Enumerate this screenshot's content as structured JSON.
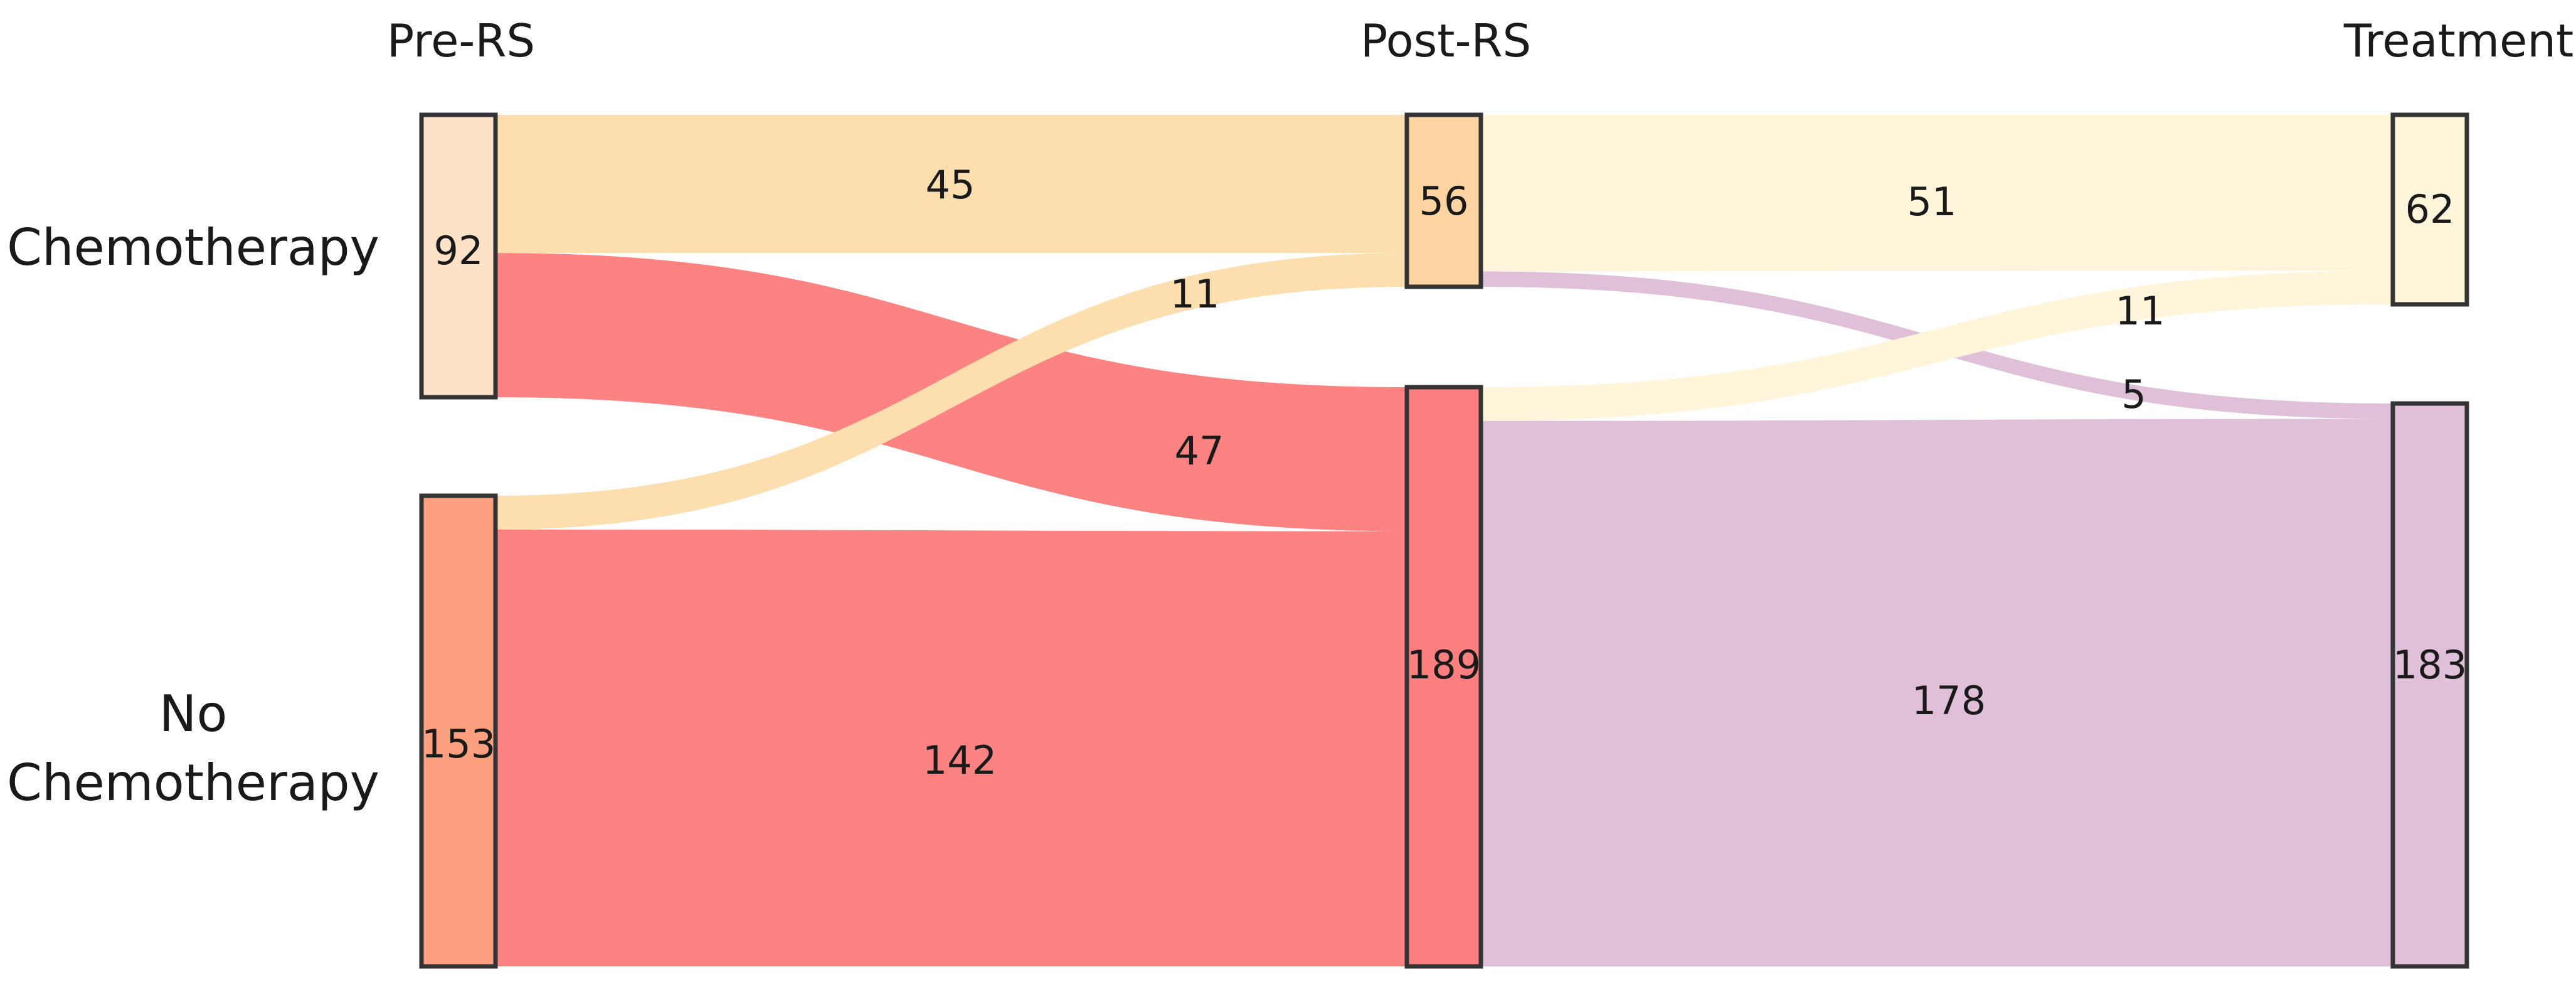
{
  "columns": [
    "Pre-RS",
    "Post-RS",
    "Treatment"
  ],
  "row_labels": {
    "chemo": "Chemotherapy",
    "no_chemo_line1": "No",
    "no_chemo_line2": "Chemotherapy"
  },
  "nodes": {
    "pre_chemo": {
      "value": 92,
      "label": "92",
      "color": "#fde2c8"
    },
    "pre_no": {
      "value": 153,
      "label": "153",
      "color": "#fda07f"
    },
    "post_chemo": {
      "value": 56,
      "label": "56",
      "color": "#fdd4a2"
    },
    "post_no": {
      "value": 189,
      "label": "189",
      "color": "#fd7f7f"
    },
    "treat_chemo": {
      "value": 62,
      "label": "62",
      "color": "#fff5da"
    },
    "treat_no": {
      "value": 183,
      "label": "183",
      "color": "#e0c0d8"
    }
  },
  "flows": [
    {
      "id": "f_pc_poc",
      "source": "pre_chemo",
      "target": "post_chemo",
      "value": 45,
      "label": "45",
      "color": "#fddeae"
    },
    {
      "id": "f_pc_pon",
      "source": "pre_chemo",
      "target": "post_no",
      "value": 47,
      "label": "47",
      "color": "#fd8383"
    },
    {
      "id": "f_pn_poc",
      "source": "pre_no",
      "target": "post_chemo",
      "value": 11,
      "label": "11",
      "color": "#fddeae"
    },
    {
      "id": "f_pn_pon",
      "source": "pre_no",
      "target": "post_no",
      "value": 142,
      "label": "142",
      "color": "#fd8383"
    },
    {
      "id": "f_poc_tc",
      "source": "post_chemo",
      "target": "treat_chemo",
      "value": 51,
      "label": "51",
      "color": "#fff5da"
    },
    {
      "id": "f_poc_tn",
      "source": "post_chemo",
      "target": "treat_no",
      "value": 5,
      "label": "5",
      "color": "#e0c0d8"
    },
    {
      "id": "f_pon_tc",
      "source": "post_no",
      "target": "treat_chemo",
      "value": 11,
      "label": "11",
      "color": "#fff5da"
    },
    {
      "id": "f_pon_tn",
      "source": "post_no",
      "target": "treat_no",
      "value": 178,
      "label": "178",
      "color": "#e0c0d8"
    }
  ]
}
